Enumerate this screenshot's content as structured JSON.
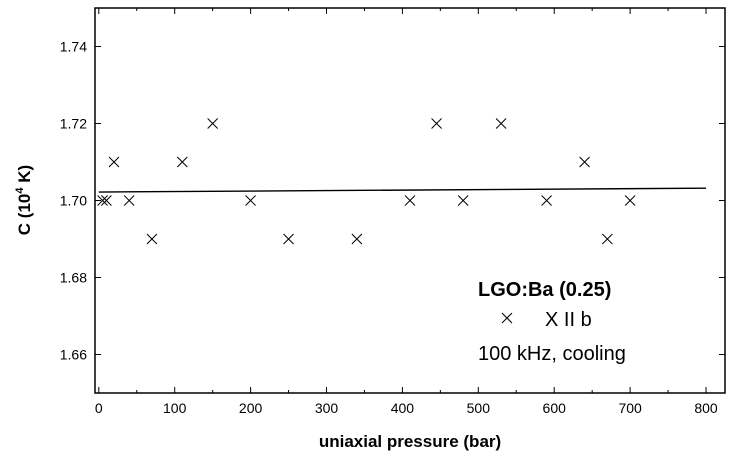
{
  "chart_data": {
    "type": "scatter",
    "xlabel": "uniaxial pressure (bar)",
    "ylabel_main": "C (10",
    "ylabel_sup": "4",
    "ylabel_end": " K)",
    "xlim": [
      -5,
      825
    ],
    "ylim": [
      1.65,
      1.75
    ],
    "xticks": [
      0,
      100,
      200,
      300,
      400,
      500,
      600,
      700,
      800
    ],
    "yticks": [
      1.66,
      1.68,
      1.7,
      1.72,
      1.74
    ],
    "ytick_labels": [
      "1.66",
      "1.68",
      "1.70",
      "1.72",
      "1.74"
    ],
    "grid": false,
    "legend_placement": "bottom-right",
    "series": [
      {
        "name": "X II b",
        "marker": "x",
        "x": [
          5,
          10,
          20,
          40,
          70,
          110,
          150,
          200,
          250,
          340,
          410,
          445,
          480,
          530,
          590,
          640,
          670,
          700
        ],
        "y": [
          1.7,
          1.7,
          1.71,
          1.7,
          1.69,
          1.71,
          1.72,
          1.7,
          1.69,
          1.69,
          1.7,
          1.72,
          1.7,
          1.72,
          1.7,
          1.71,
          1.69,
          1.7
        ]
      }
    ],
    "fit_line": {
      "x": [
        0,
        800
      ],
      "y": [
        1.7022,
        1.7032
      ]
    },
    "annotation": {
      "title": "LGO:Ba (0.25)",
      "entry": "X II b",
      "condition": "100 kHz, cooling"
    }
  }
}
